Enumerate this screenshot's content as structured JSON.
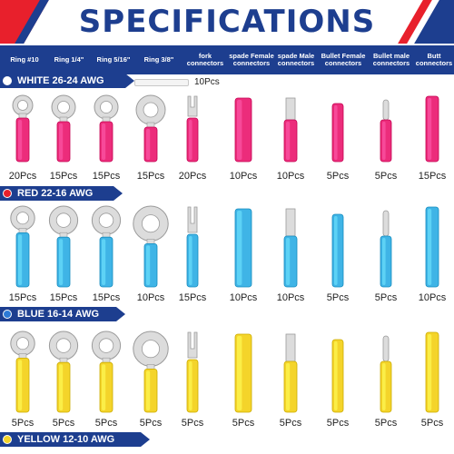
{
  "title": "SPECIFICATIONS",
  "columns": [
    "Ring #10",
    "Ring 1/4\"",
    "Ring 5/16\"",
    "Ring 3/8\"",
    "fork connectors",
    "spade Female connectors",
    "spade Male connectors",
    "Bullet Female connectors",
    "Bullet male connectors",
    "Butt connectors"
  ],
  "sections": [
    {
      "label": "WHITE  26-24 AWG",
      "dot_color": "#ffffff",
      "color": "#ec2c7b",
      "extra_label": "10Pcs",
      "quantities": [
        "20Pcs",
        "15Pcs",
        "15Pcs",
        "15Pcs",
        "20Pcs",
        "10Pcs",
        "10Pcs",
        "5Pcs",
        "5Pcs",
        "15Pcs"
      ]
    },
    {
      "label": "RED  22-16 AWG",
      "dot_color": "#e8202c",
      "color": "#3fb4e6",
      "quantities": [
        "15Pcs",
        "15Pcs",
        "15Pcs",
        "10Pcs",
        "15Pcs",
        "10Pcs",
        "10Pcs",
        "5Pcs",
        "5Pcs",
        "10Pcs"
      ]
    },
    {
      "label": "BLUE  16-14 AWG",
      "dot_color": "#2c7ad6",
      "color": "#f4d42a",
      "quantities": [
        "5Pcs",
        "5Pcs",
        "5Pcs",
        "5Pcs",
        "5Pcs",
        "5Pcs",
        "5Pcs",
        "5Pcs",
        "5Pcs",
        "5Pcs"
      ]
    },
    {
      "label": "YELLOW  12-10 AWG",
      "dot_color": "#f4d42a"
    }
  ],
  "colors": {
    "navy": "#1d3e8f",
    "red": "#e8202c"
  }
}
